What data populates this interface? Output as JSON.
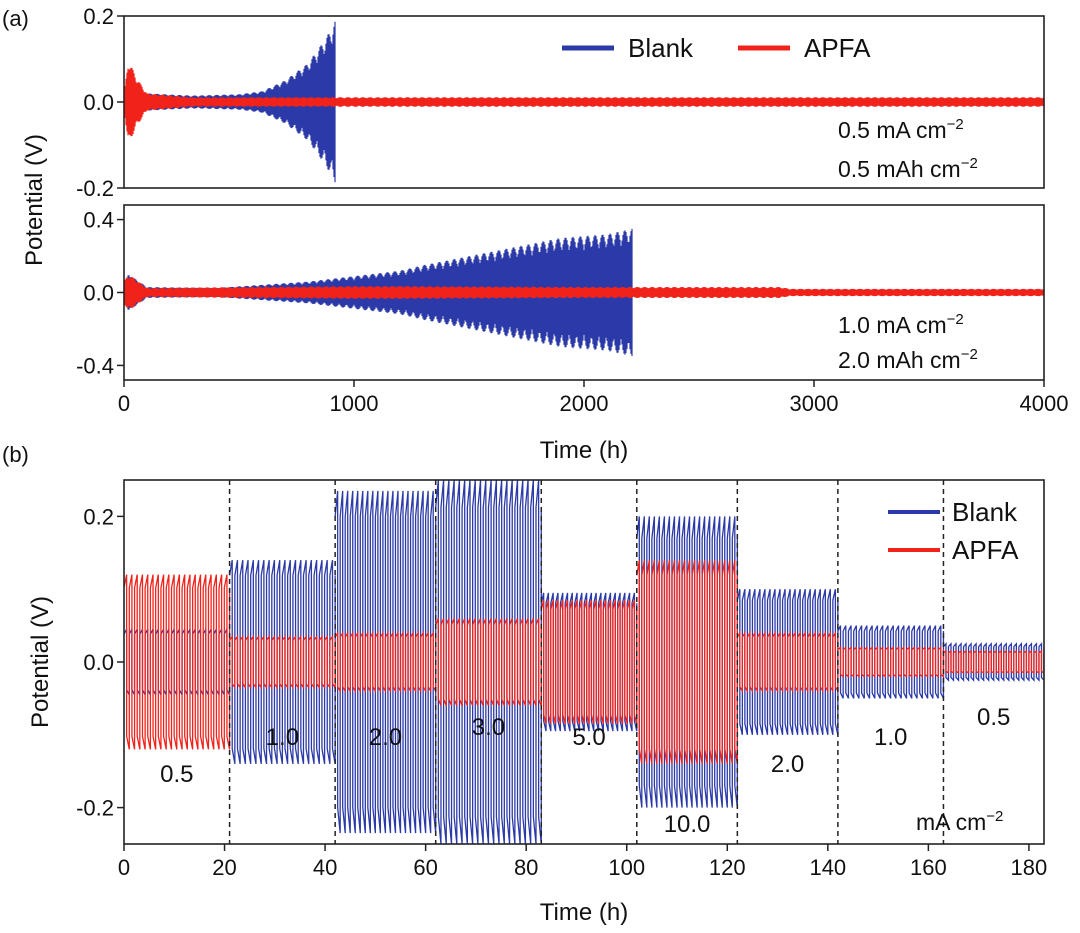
{
  "colors": {
    "blank": "#2b3aa8",
    "apfa": "#f0221a",
    "axis": "#222222",
    "divider": "#222222"
  },
  "chart_data": [
    {
      "panel_label": "(a)",
      "type": "line",
      "subtype": "voltage-time profile (dense cycling envelope)",
      "xlim": [
        0,
        4000
      ],
      "ylim": [
        -0.2,
        0.2
      ],
      "yticks": [
        "0.2",
        "0.0",
        "-0.2"
      ],
      "ytick_values": [
        0.2,
        0.0,
        -0.2
      ],
      "legend": {
        "placement": "top-right",
        "entries": [
          "Blank",
          "APFA"
        ]
      },
      "conditions": [
        "0.5 mA cm",
        "0.5 mAh cm"
      ],
      "superscript": "−2",
      "series": [
        {
          "name": "Blank",
          "color": "#2b3aa8",
          "envelope": [
            [
              0,
              0.03
            ],
            [
              20,
              0.05
            ],
            [
              60,
              0.03
            ],
            [
              100,
              0.02
            ],
            [
              300,
              0.015
            ],
            [
              500,
              0.018
            ],
            [
              600,
              0.025
            ],
            [
              700,
              0.05
            ],
            [
              800,
              0.09
            ],
            [
              880,
              0.15
            ],
            [
              920,
              0.19
            ]
          ],
          "end_x": 920
        },
        {
          "name": "APFA",
          "color": "#f0221a",
          "envelope": [
            [
              0,
              0.02
            ],
            [
              20,
              0.1
            ],
            [
              50,
              0.06
            ],
            [
              100,
              0.02
            ],
            [
              300,
              0.011
            ],
            [
              1000,
              0.011
            ],
            [
              4000,
              0.011
            ]
          ],
          "end_x": 4000
        }
      ]
    },
    {
      "type": "line",
      "subtype": "voltage-time profile (dense cycling envelope)",
      "xlim": [
        0,
        4000
      ],
      "ylim": [
        -0.48,
        0.48
      ],
      "xticks": [
        "0",
        "1000",
        "2000",
        "3000",
        "4000"
      ],
      "xtick_values": [
        0,
        1000,
        2000,
        3000,
        4000
      ],
      "yticks": [
        "0.4",
        "0.0",
        "-0.4"
      ],
      "ytick_values": [
        0.4,
        0.0,
        -0.4
      ],
      "xlabel": "Time (h)",
      "shared_ylabel": "Potential (V)",
      "conditions": [
        "1.0 mA cm",
        "2.0 mAh cm"
      ],
      "superscript": "−2",
      "series": [
        {
          "name": "Blank",
          "color": "#2b3aa8",
          "envelope": [
            [
              0,
              0.05
            ],
            [
              20,
              0.1
            ],
            [
              100,
              0.03
            ],
            [
              400,
              0.025
            ],
            [
              800,
              0.06
            ],
            [
              1200,
              0.12
            ],
            [
              1300,
              0.15
            ],
            [
              1500,
              0.2
            ],
            [
              1700,
              0.25
            ],
            [
              1900,
              0.3
            ],
            [
              2100,
              0.32
            ],
            [
              2210,
              0.35
            ]
          ],
          "end_x": 2210
        },
        {
          "name": "APFA",
          "color": "#f0221a",
          "envelope": [
            [
              0,
              0.06
            ],
            [
              20,
              0.1
            ],
            [
              100,
              0.025
            ],
            [
              1000,
              0.035
            ],
            [
              1200,
              0.035
            ],
            [
              2000,
              0.03
            ],
            [
              2850,
              0.03
            ],
            [
              2900,
              0.02
            ],
            [
              4000,
              0.02
            ]
          ],
          "end_x": 4000
        }
      ]
    },
    {
      "panel_label": "(b)",
      "type": "line",
      "subtype": "rate performance voltage-time profile",
      "xlim": [
        0,
        183
      ],
      "ylim": [
        -0.25,
        0.25
      ],
      "xticks": [
        "0",
        "20",
        "40",
        "60",
        "80",
        "100",
        "120",
        "140",
        "160",
        "180"
      ],
      "xtick_values": [
        0,
        20,
        40,
        60,
        80,
        100,
        120,
        140,
        160,
        180
      ],
      "yticks": [
        "0.2",
        "0.0",
        "-0.2"
      ],
      "ytick_values": [
        0.2,
        0.0,
        -0.2
      ],
      "xlabel": "Time (h)",
      "ylabel": "Potential (V)",
      "legend": {
        "placement": "top-right",
        "entries": [
          "Blank",
          "APFA"
        ]
      },
      "unit_label": "mA cm",
      "superscript": "−2",
      "segments": [
        {
          "label": "0.5",
          "x0": 0,
          "x1": 21,
          "blank_amp": 0.045,
          "apfa_amp": 0.12,
          "blank_count": 20,
          "apfa_count": 20
        },
        {
          "label": "1.0",
          "x0": 21,
          "x1": 42,
          "blank_amp": 0.14,
          "apfa_amp": 0.035,
          "blank_count": 20,
          "apfa_count": 20
        },
        {
          "label": "2.0",
          "x0": 42,
          "x1": 62,
          "blank_amp": 0.235,
          "apfa_amp": 0.04,
          "blank_count": 20,
          "apfa_count": 20
        },
        {
          "label": "3.0",
          "x0": 62,
          "x1": 83,
          "blank_amp": 0.25,
          "apfa_amp": 0.06,
          "blank_count": 20,
          "apfa_count": 20
        },
        {
          "label": "5.0",
          "x0": 83,
          "x1": 102,
          "blank_amp": 0.095,
          "apfa_amp": 0.085,
          "blank_count": 20,
          "apfa_count": 20
        },
        {
          "label": "10.0",
          "x0": 102,
          "x1": 122,
          "blank_amp": 0.2,
          "apfa_amp": 0.14,
          "blank_count": 20,
          "apfa_count": 20
        },
        {
          "label": "2.0",
          "x0": 122,
          "x1": 142,
          "blank_amp": 0.1,
          "apfa_amp": 0.04,
          "blank_count": 20,
          "apfa_count": 20
        },
        {
          "label": "1.0",
          "x0": 142,
          "x1": 163,
          "blank_amp": 0.05,
          "apfa_amp": 0.02,
          "blank_count": 20,
          "apfa_count": 20
        },
        {
          "label": "0.5",
          "x0": 163,
          "x1": 183,
          "blank_amp": 0.025,
          "apfa_amp": 0.015,
          "blank_count": 20,
          "apfa_count": 20
        }
      ],
      "dividers": [
        21,
        42,
        62,
        83,
        102,
        122,
        142,
        163
      ]
    }
  ]
}
